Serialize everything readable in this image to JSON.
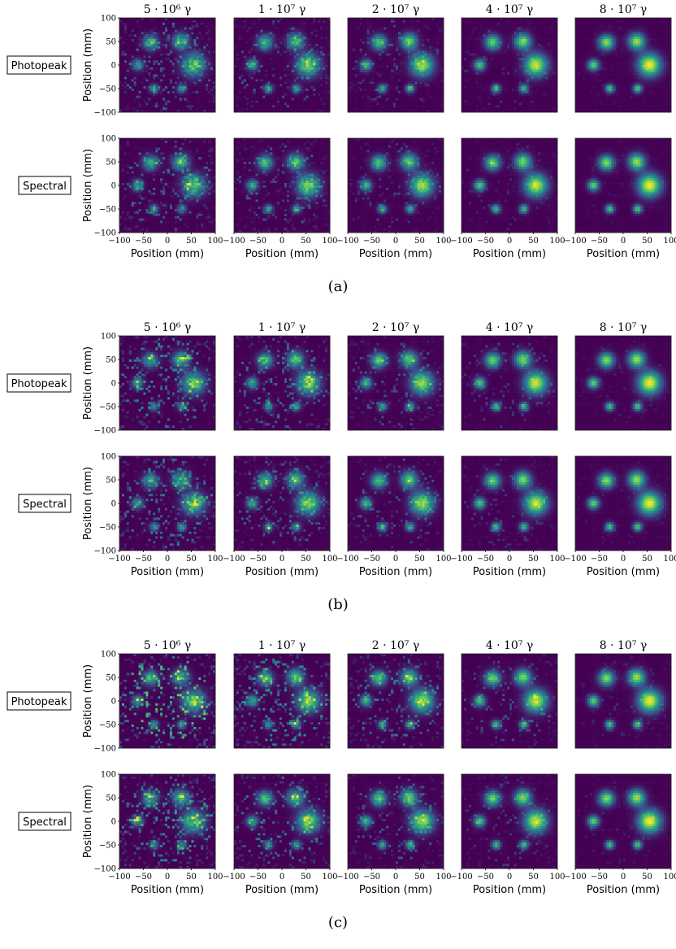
{
  "figure": {
    "panels": [
      "(a)",
      "(b)",
      "(c)"
    ]
  },
  "colormap": {
    "low": "#440154",
    "mid1": "#3b528b",
    "mid2": "#21918c",
    "mid3": "#5ec962",
    "high": "#fde725"
  },
  "chart_data": {
    "type": "heatmap",
    "column_titles": [
      "5 · 10⁶  γ",
      "1 · 10⁷ γ",
      "2 · 10⁷ γ",
      "4 · 10⁷ γ",
      "8 · 10⁷ γ"
    ],
    "photon_counts": [
      5000000,
      10000000,
      20000000,
      40000000,
      80000000
    ],
    "row_labels": [
      "Photopeak",
      "Spectral"
    ],
    "xlabel": "Position (mm)",
    "ylabel": "Position (mm)",
    "xlim": [
      -100,
      100
    ],
    "ylim": [
      -100,
      100
    ],
    "x_ticks": [
      "−100",
      "−50",
      "0",
      "50",
      "100"
    ],
    "y_ticks": [
      "100",
      "50",
      "0",
      "−50",
      "−100"
    ],
    "x_tick_values": [
      -100,
      -50,
      0,
      50,
      100
    ],
    "y_tick_values": [
      100,
      50,
      0,
      -50,
      -100
    ],
    "grid": false,
    "sources": [
      {
        "x": -35,
        "y": 48,
        "r": 12
      },
      {
        "x": 28,
        "y": 50,
        "r": 13
      },
      {
        "x": -62,
        "y": 0,
        "r": 9
      },
      {
        "x": 55,
        "y": 0,
        "r": 18
      },
      {
        "x": -28,
        "y": -50,
        "r": 7
      },
      {
        "x": 30,
        "y": -50,
        "r": 7
      }
    ],
    "background_noise": {
      "a": {
        "Photopeak": 0.3,
        "Spectral": 0.28
      },
      "b": {
        "Photopeak": 0.4,
        "Spectral": 0.36
      },
      "c": {
        "Photopeak": 0.55,
        "Spectral": 0.42
      }
    }
  }
}
